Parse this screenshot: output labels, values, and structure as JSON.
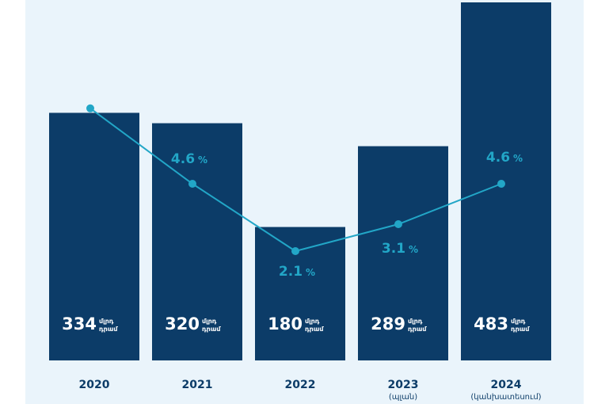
{
  "colors": {
    "bar": "#0c3c68",
    "line": "#22a6c7",
    "year_text": "#0c3c68"
  },
  "chart_data": {
    "type": "bar",
    "categories": [
      "2020",
      "2021",
      "2022",
      "2023",
      "2024"
    ],
    "category_notes": [
      "",
      "",
      "",
      "(պլան)",
      "(կանխատեսում)"
    ],
    "bar_unit": [
      "մլրդ",
      "դրամ"
    ],
    "series": [
      {
        "type": "bar",
        "values": [
          334,
          320,
          180,
          289,
          483
        ]
      },
      {
        "type": "line",
        "values": [
          7.4,
          4.6,
          2.1,
          3.1,
          4.6
        ],
        "unit": "%",
        "labels": [
          "",
          "4.6",
          "2.1",
          "3.1",
          "4.6"
        ]
      }
    ]
  }
}
